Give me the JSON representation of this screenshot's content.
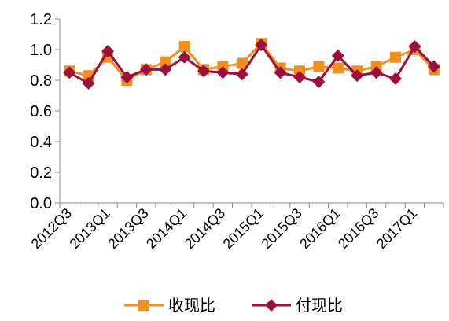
{
  "chart_data": {
    "type": "line",
    "x": [
      "2012Q3",
      "2012Q4",
      "2013Q1",
      "2013Q2",
      "2013Q3",
      "2013Q4",
      "2014Q1",
      "2014Q2",
      "2014Q3",
      "2014Q4",
      "2015Q1",
      "2015Q2",
      "2015Q3",
      "2015Q4",
      "2016Q1",
      "2016Q2",
      "2016Q3",
      "2016Q4",
      "2017Q1",
      "2017Q2"
    ],
    "x_tick_labels": [
      "2012Q3",
      "2013Q1",
      "2013Q3",
      "2014Q1",
      "2014Q3",
      "2015Q1",
      "2015Q3",
      "2016Q1",
      "2016Q3",
      "2017Q1"
    ],
    "ylim": [
      0,
      1.2
    ],
    "y_ticks": [
      "0.0",
      "0.2",
      "0.4",
      "0.6",
      "0.8",
      "1.0",
      "1.2"
    ],
    "grid": false,
    "legend_position": "bottom",
    "series": [
      {
        "name": "收现比",
        "color": "#F28E1C",
        "marker": "square",
        "values": [
          0.86,
          0.83,
          0.95,
          0.8,
          0.87,
          0.92,
          1.02,
          0.87,
          0.89,
          0.91,
          1.04,
          0.88,
          0.86,
          0.89,
          0.88,
          0.86,
          0.89,
          0.95,
          1.0,
          0.87
        ]
      },
      {
        "name": "付现比",
        "color": "#9E0F3C",
        "marker": "diamond",
        "values": [
          0.85,
          0.78,
          0.99,
          0.82,
          0.87,
          0.87,
          0.95,
          0.86,
          0.85,
          0.84,
          1.03,
          0.85,
          0.82,
          0.79,
          0.96,
          0.83,
          0.85,
          0.81,
          1.02,
          0.89
        ]
      }
    ]
  }
}
